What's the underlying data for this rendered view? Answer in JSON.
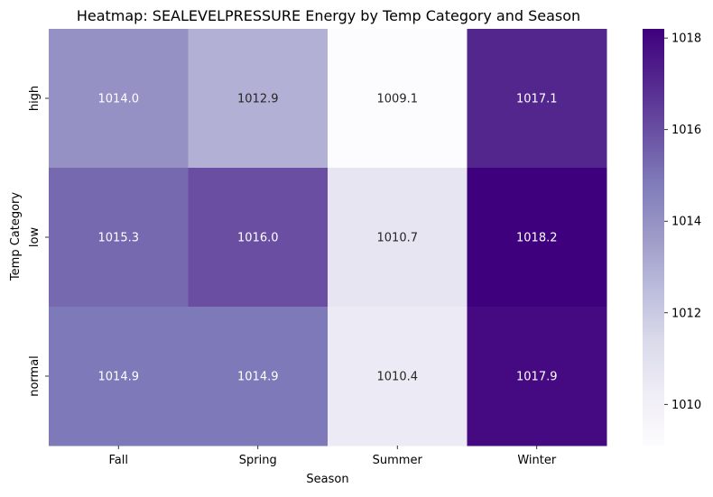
{
  "chart_data": {
    "type": "heatmap",
    "title": "Heatmap: SEALEVELPRESSURE Energy by Temp Category and Season",
    "xlabel": "Season",
    "ylabel": "Temp Category",
    "x_categories": [
      "Fall",
      "Spring",
      "Summer",
      "Winter"
    ],
    "y_categories": [
      "high",
      "low",
      "normal"
    ],
    "values": [
      [
        1014.0,
        1012.9,
        1009.1,
        1017.1
      ],
      [
        1015.3,
        1016.0,
        1010.7,
        1018.2
      ],
      [
        1014.9,
        1014.9,
        1010.4,
        1017.9
      ]
    ],
    "value_labels": [
      [
        "1014.0",
        "1012.9",
        "1009.1",
        "1017.1"
      ],
      [
        "1015.3",
        "1016.0",
        "1010.7",
        "1018.2"
      ],
      [
        "1014.9",
        "1014.9",
        "1010.4",
        "1017.9"
      ]
    ],
    "colormap": "Purples",
    "color_range": [
      1009.1,
      1018.2
    ],
    "colorbar_ticks": [
      1010,
      1012,
      1014,
      1016,
      1018
    ],
    "colorbar_tick_labels": [
      "1010",
      "1012",
      "1014",
      "1016",
      "1018"
    ]
  }
}
